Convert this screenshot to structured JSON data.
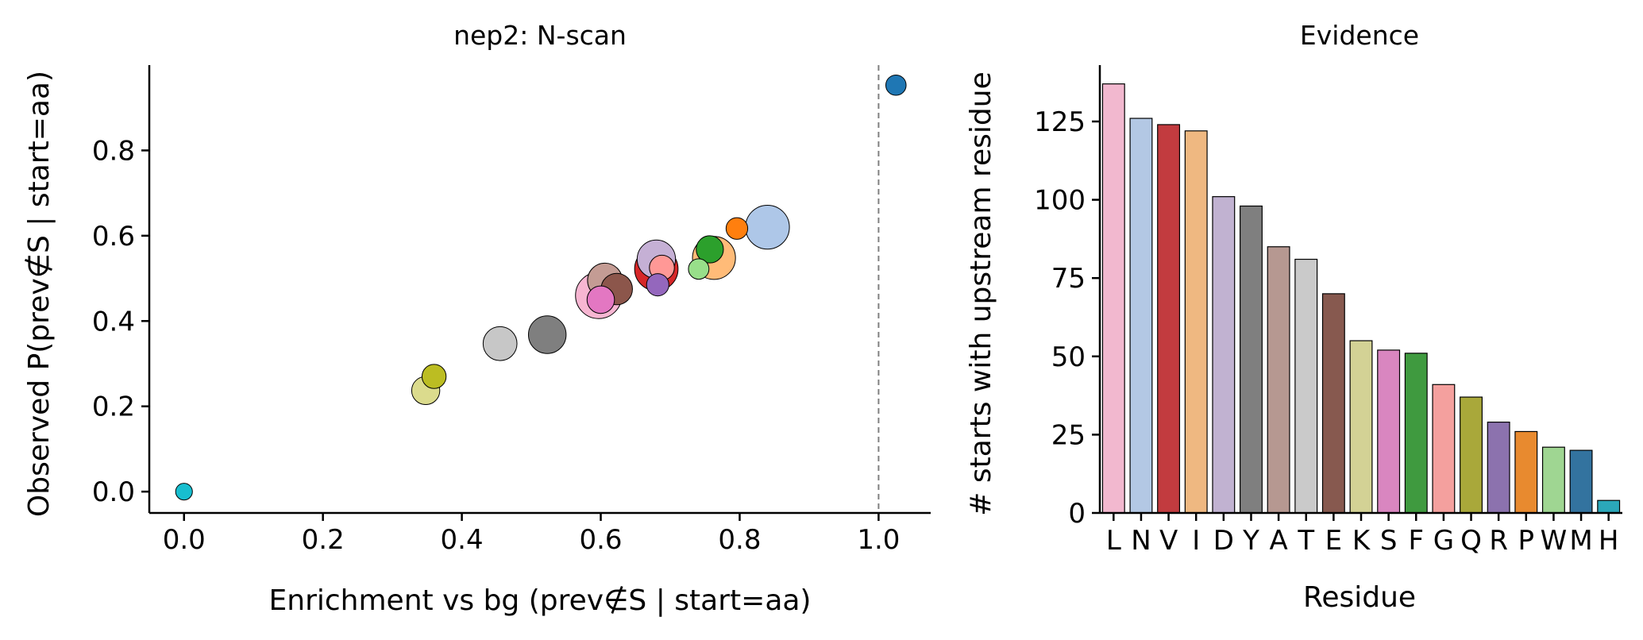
{
  "chart_data": [
    {
      "type": "scatter",
      "title": "nep2: N-scan",
      "xlabel": "Enrichment vs bg (prev∉S | start=aa)",
      "ylabel": "Observed P(prev∉S | start=aa)",
      "xlim": [
        -0.05,
        1.075
      ],
      "ylim": [
        -0.05,
        1.0
      ],
      "xticks": [
        "0.0",
        "0.2",
        "0.4",
        "0.6",
        "0.8",
        "1.0"
      ],
      "yticks": [
        "0.0",
        "0.2",
        "0.4",
        "0.6",
        "0.8"
      ],
      "xtick_values": [
        0.0,
        0.2,
        0.4,
        0.6,
        0.8,
        1.0
      ],
      "ytick_values": [
        0.0,
        0.2,
        0.4,
        0.6,
        0.8
      ],
      "reference_line_x": 1.0,
      "grid": false,
      "points": [
        {
          "residue": "H",
          "x": 0.0,
          "y": 0.0,
          "count": 4,
          "color": "#17becf"
        },
        {
          "residue": "Q",
          "x": 0.36,
          "y": 0.27,
          "count": 37,
          "color": "#bcbd22"
        },
        {
          "residue": "K",
          "x": 0.348,
          "y": 0.237,
          "count": 55,
          "color": "#dbdb8d"
        },
        {
          "residue": "T",
          "x": 0.455,
          "y": 0.347,
          "count": 81,
          "color": "#c7c7c7"
        },
        {
          "residue": "Y",
          "x": 0.523,
          "y": 0.368,
          "count": 98,
          "color": "#7f7f7f"
        },
        {
          "residue": "S",
          "x": 0.6,
          "y": 0.45,
          "count": 52,
          "color": "#e377c2"
        },
        {
          "residue": "E",
          "x": 0.623,
          "y": 0.475,
          "count": 70,
          "color": "#8c564b"
        },
        {
          "residue": "A",
          "x": 0.606,
          "y": 0.495,
          "count": 85,
          "color": "#c49c94"
        },
        {
          "residue": "G",
          "x": 0.688,
          "y": 0.525,
          "count": 41,
          "color": "#ff9896"
        },
        {
          "residue": "V",
          "x": 0.68,
          "y": 0.522,
          "count": 124,
          "color": "#d62728"
        },
        {
          "residue": "R",
          "x": 0.682,
          "y": 0.485,
          "count": 29,
          "color": "#9467bd"
        },
        {
          "residue": "I",
          "x": 0.763,
          "y": 0.548,
          "count": 122,
          "color": "#ffbb78"
        },
        {
          "residue": "W",
          "x": 0.741,
          "y": 0.522,
          "count": 21,
          "color": "#98df8a"
        },
        {
          "residue": "F",
          "x": 0.757,
          "y": 0.568,
          "count": 51,
          "color": "#2ca02c"
        },
        {
          "residue": "D",
          "x": 0.68,
          "y": 0.545,
          "count": 101,
          "color": "#c5b0d5"
        },
        {
          "residue": "L",
          "x": 0.597,
          "y": 0.46,
          "count": 137,
          "color": "#f7b6d2"
        },
        {
          "residue": "P",
          "x": 0.796,
          "y": 0.617,
          "count": 26,
          "color": "#ff7f0e"
        },
        {
          "residue": "N",
          "x": 0.84,
          "y": 0.62,
          "count": 126,
          "color": "#aec7e8"
        },
        {
          "residue": "M",
          "x": 1.025,
          "y": 0.953,
          "count": 20,
          "color": "#1f77b4"
        }
      ]
    },
    {
      "type": "bar",
      "title": "Evidence",
      "xlabel": "Residue",
      "ylabel": "# starts with upstream residue",
      "ylim": [
        0,
        143
      ],
      "yticks": [
        "0",
        "25",
        "50",
        "75",
        "100",
        "125"
      ],
      "ytick_values": [
        0,
        25,
        50,
        75,
        100,
        125
      ],
      "grid": false,
      "categories": [
        "L",
        "N",
        "V",
        "I",
        "D",
        "Y",
        "A",
        "T",
        "E",
        "K",
        "S",
        "F",
        "G",
        "Q",
        "R",
        "P",
        "W",
        "M",
        "H"
      ],
      "values": [
        137,
        126,
        124,
        122,
        101,
        98,
        85,
        81,
        70,
        55,
        52,
        51,
        41,
        37,
        29,
        26,
        21,
        20,
        4
      ],
      "colors": [
        "#f2b8cf",
        "#b3c8e4",
        "#c23b3f",
        "#efb881",
        "#c1b2d1",
        "#7f7f7f",
        "#b69891",
        "#cacaca",
        "#87594f",
        "#d3d295",
        "#d986c0",
        "#3f9a3f",
        "#f4a09e",
        "#a9a83a",
        "#8c72ae",
        "#e88a2f",
        "#9fd692",
        "#33739f",
        "#2ba7b9"
      ]
    }
  ]
}
